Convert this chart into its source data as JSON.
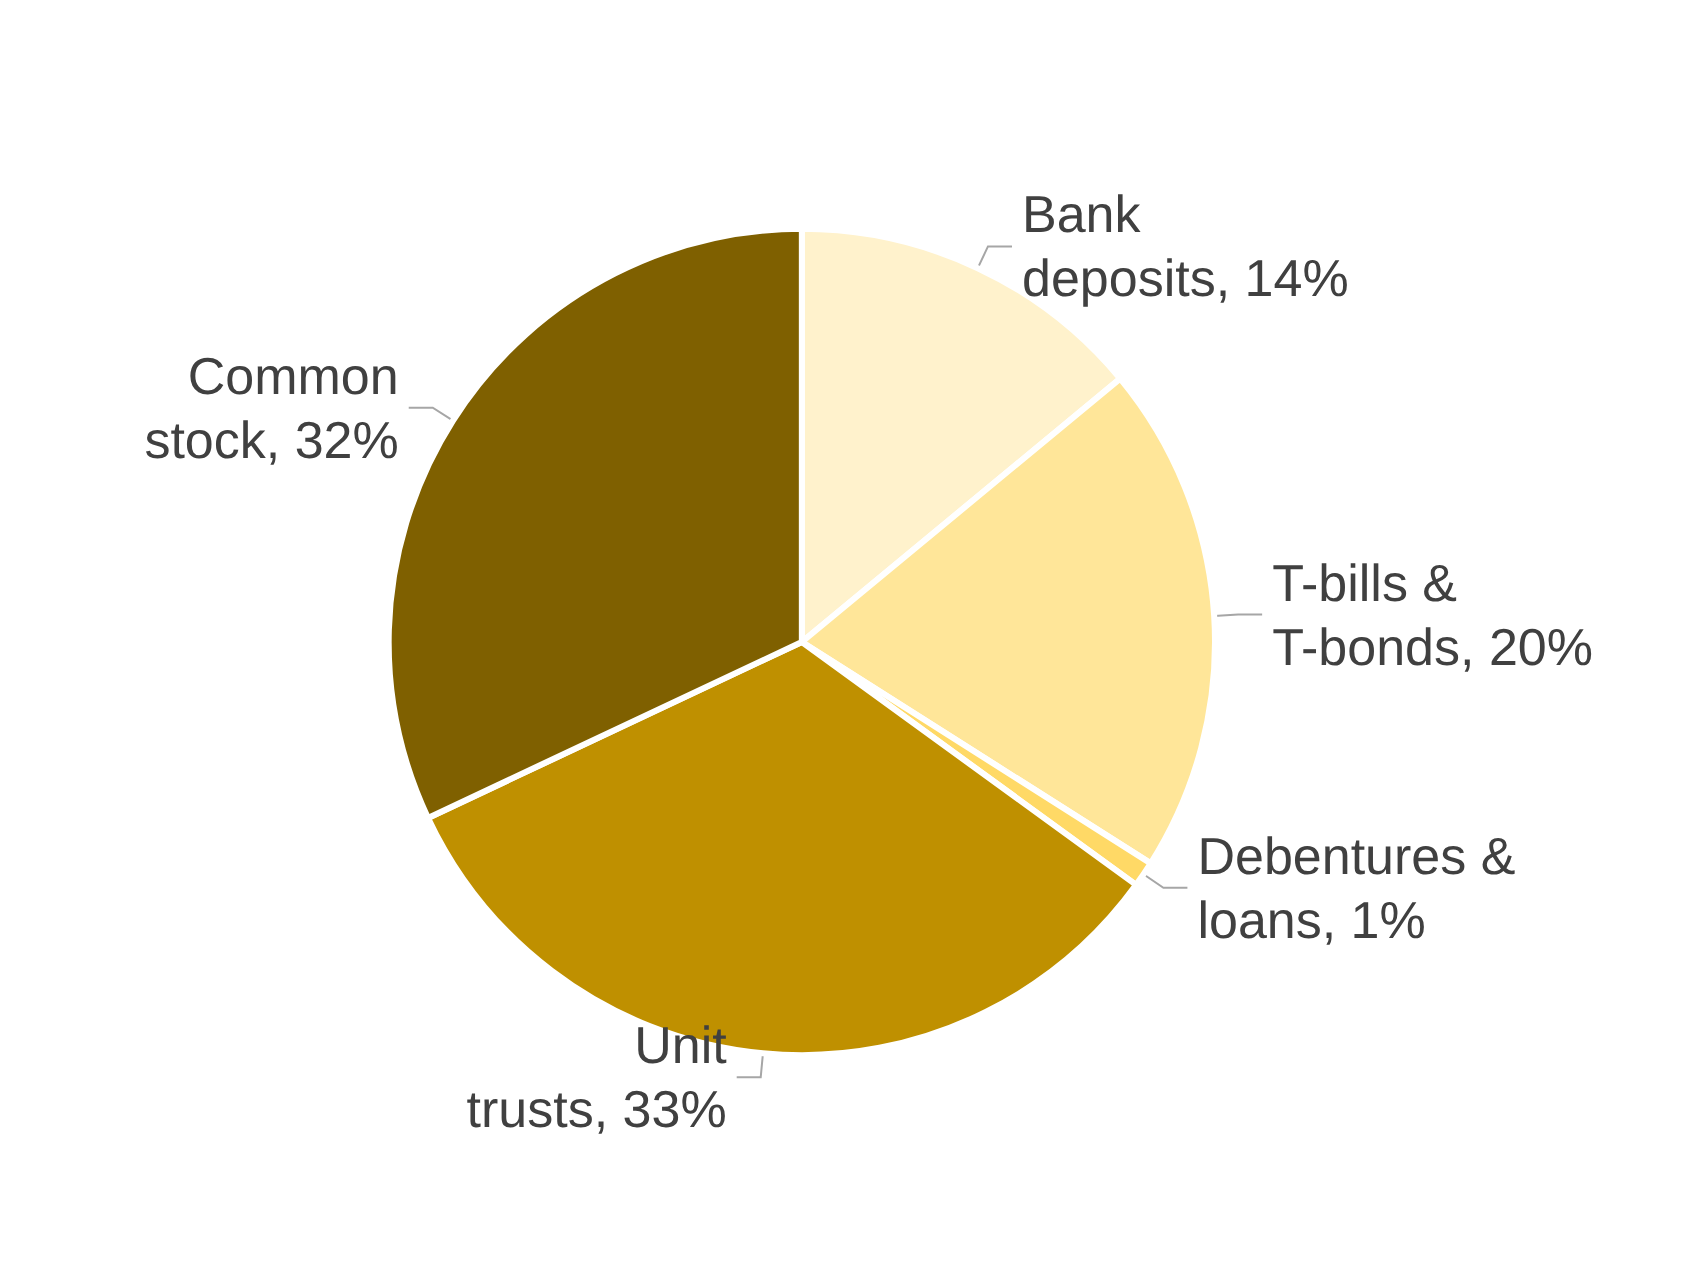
{
  "chart_data": {
    "type": "pie",
    "categories": [
      "Bank deposits",
      "T-bills & T-bonds",
      "Debentures & loans",
      "Unit trusts",
      "Common stock"
    ],
    "values": [
      14,
      20,
      1,
      33,
      32
    ],
    "value_labels": [
      "14%",
      "20%",
      "1%",
      "33%",
      "32%"
    ],
    "colors": [
      "#fff2cc",
      "#ffe699",
      "#ffd966",
      "#bf9000",
      "#7f6000"
    ],
    "legend": false
  }
}
